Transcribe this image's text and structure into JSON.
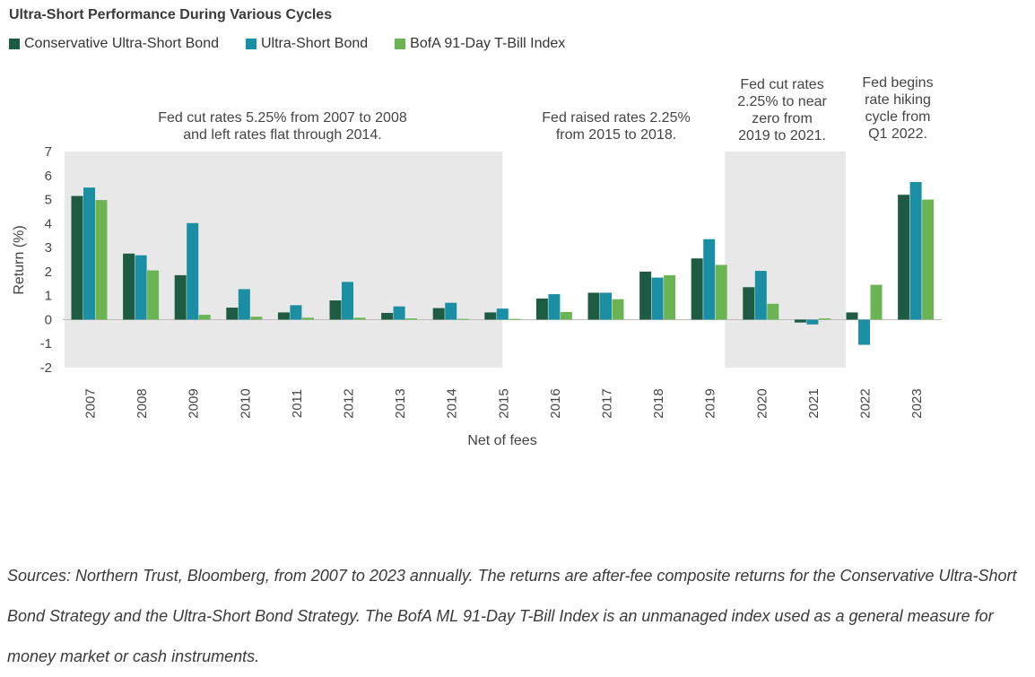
{
  "title": "Ultra-Short Performance During Various Cycles",
  "legend": [
    {
      "label": "Conservative Ultra-Short Bond",
      "color": "#1d5c43"
    },
    {
      "label": "Ultra-Short Bond",
      "color": "#1a8fa3"
    },
    {
      "label": "BofA 91-Day T-Bill Index",
      "color": "#6bb454"
    }
  ],
  "chart_data": {
    "type": "bar",
    "categories": [
      "2007",
      "2008",
      "2009",
      "2010",
      "2011",
      "2012",
      "2013",
      "2014",
      "2015",
      "2016",
      "2017",
      "2018",
      "2019",
      "2020",
      "2021",
      "2022",
      "2023"
    ],
    "series": [
      {
        "name": "Conservative Ultra-Short Bond",
        "color": "#1d5c43",
        "values": [
          5.15,
          2.75,
          1.85,
          0.5,
          0.3,
          0.8,
          0.28,
          0.48,
          0.3,
          0.88,
          1.12,
          2.0,
          2.55,
          1.35,
          -0.12,
          0.3,
          5.2
        ]
      },
      {
        "name": "Ultra-Short Bond",
        "color": "#1a8fa3",
        "values": [
          5.5,
          2.68,
          4.02,
          1.27,
          0.6,
          1.57,
          0.55,
          0.7,
          0.46,
          1.06,
          1.12,
          1.75,
          3.35,
          2.03,
          -0.2,
          -1.05,
          5.73
        ]
      },
      {
        "name": "BofA 91-Day T-Bill Index",
        "color": "#6bb454",
        "values": [
          4.98,
          2.05,
          0.2,
          0.12,
          0.08,
          0.08,
          0.05,
          0.03,
          0.03,
          0.32,
          0.85,
          1.85,
          2.28,
          0.66,
          0.05,
          1.45,
          5.0
        ]
      }
    ],
    "ylabel": "Return (%)",
    "xlabel": "Net of fees",
    "ylim": [
      -2,
      7
    ],
    "yticks": [
      -2,
      -1,
      0,
      1,
      2,
      3,
      4,
      5,
      6,
      7
    ],
    "shaded_periods": [
      {
        "from": "2007",
        "to": "2015"
      },
      {
        "from": "2020",
        "to": "2021"
      }
    ],
    "annotations": [
      {
        "lines": [
          "Fed cut rates 5.25% from 2007 to 2008",
          "and left rates flat through 2014."
        ],
        "anchor": "2010.5"
      },
      {
        "lines": [
          "Fed raised rates 2.25%",
          "from 2015 to 2018."
        ],
        "anchor": "2016.8"
      },
      {
        "lines": [
          "Fed cut rates",
          "2.25% to near",
          "zero from",
          "2019 to 2021."
        ],
        "anchor": "2020.5"
      },
      {
        "lines": [
          "Fed begins",
          "rate hiking",
          "cycle from",
          "Q1 2022."
        ],
        "anchor": "2022.5"
      }
    ]
  },
  "footnote": "Sources: Northern Trust, Bloomberg, from 2007 to 2023 annually. The returns are after-fee composite returns for the Conservative Ultra-Short Bond Strategy and the Ultra-Short Bond Strategy. The BofA ML 91-Day T-Bill Index is an unmanaged index used as a general measure for money market or cash instruments."
}
